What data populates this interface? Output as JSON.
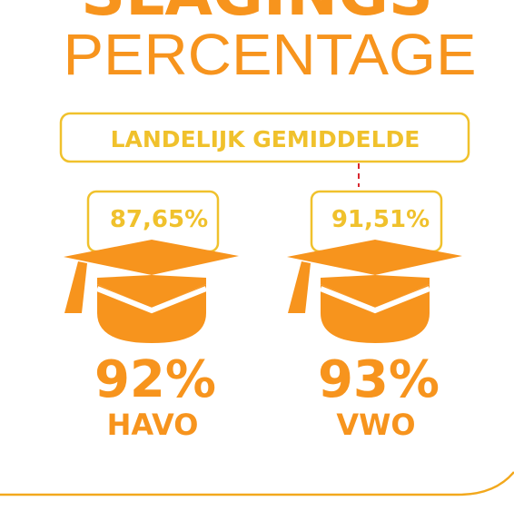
{
  "header": {
    "title_top": "SLAGINGS",
    "title": "PERCENTAGE"
  },
  "average_label": "LANDELIJK GEMIDDELDE",
  "groups": [
    {
      "average": "87,65%",
      "value": "92%",
      "label": "HAVO"
    },
    {
      "average": "91,51%",
      "value": "93%",
      "label": "VWO"
    }
  ]
}
